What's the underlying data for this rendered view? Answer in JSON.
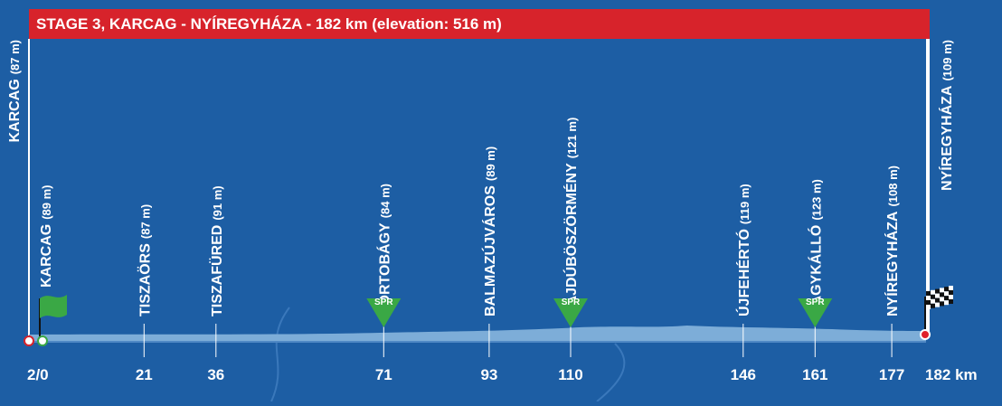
{
  "title": "STAGE 3, KARCAG - NYÍREGYHÁZA - 182 km (elevation: 516 m)",
  "edge_label": {
    "name": "KARCAG",
    "elevation": "(87 m)"
  },
  "start": {
    "name": "KARCAG",
    "elevation": "(89 m)",
    "km": "2/0"
  },
  "waypoints": [
    {
      "name": "TISZAÖRS",
      "elevation": "(87 m)",
      "km": 21
    },
    {
      "name": "TISZAFÜRED",
      "elevation": "(91 m)",
      "km": 36
    },
    {
      "name": "HORTOBÁGY",
      "elevation": "(84 m)",
      "km": 71,
      "sprint": "SPR"
    },
    {
      "name": "BALMAZÚJVÁROS",
      "elevation": "(89 m)",
      "km": 93
    },
    {
      "name": "HAJDÚBÖSZÖRMÉNY",
      "elevation": "(121 m)",
      "km": 110,
      "sprint": "SPR"
    },
    {
      "name": "ÚJFEHÉRTÓ",
      "elevation": "(119 m)",
      "km": 146
    },
    {
      "name": "NAGYKÁLLÓ",
      "elevation": "(123 m)",
      "km": 161,
      "sprint": "SPR"
    },
    {
      "name": "NYÍREGYHÁZA",
      "elevation": "(108 m)",
      "km": 177
    }
  ],
  "finish": {
    "name": "NYÍREGYHÁZA",
    "elevation": "(109 m)",
    "km": "182 km"
  }
}
